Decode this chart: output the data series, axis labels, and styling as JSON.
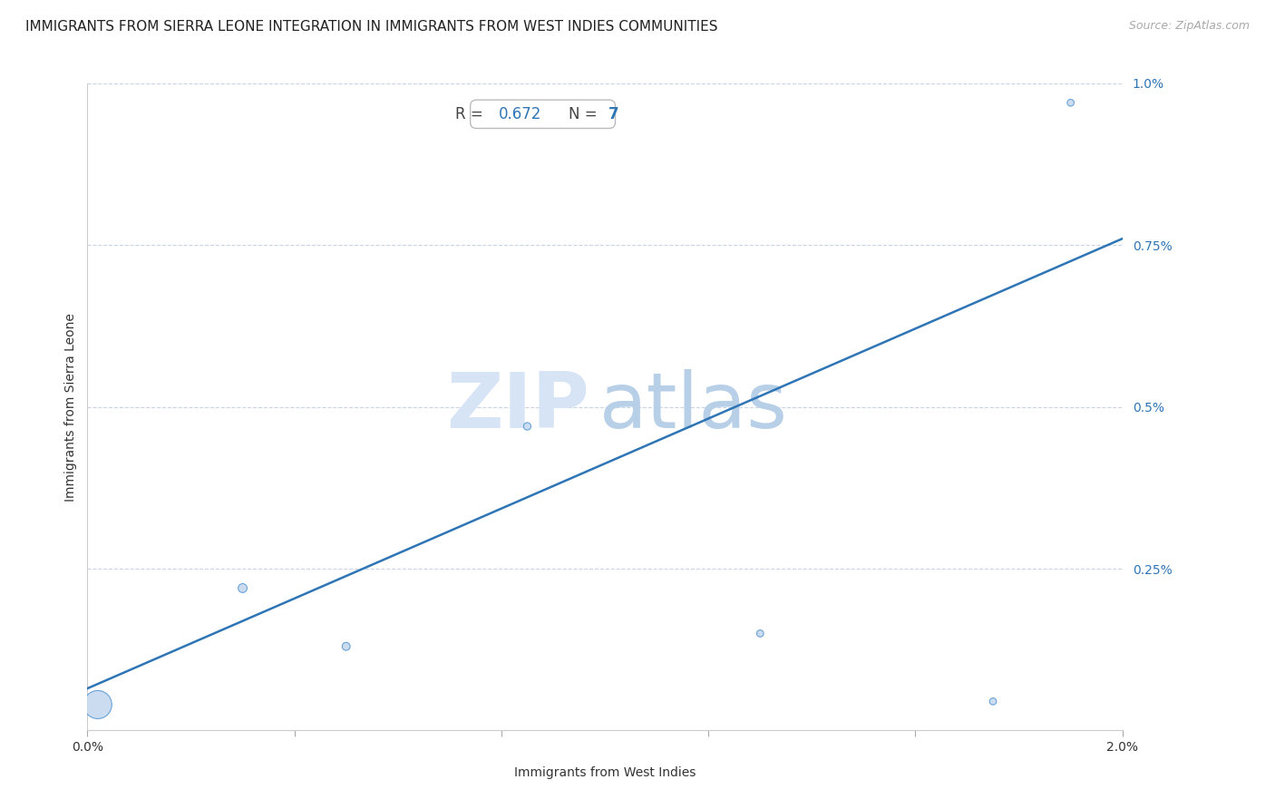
{
  "title": "IMMIGRANTS FROM SIERRA LEONE INTEGRATION IN IMMIGRANTS FROM WEST INDIES COMMUNITIES",
  "source": "Source: ZipAtlas.com",
  "xlabel": "Immigrants from West Indies",
  "ylabel": "Immigrants from Sierra Leone",
  "R": 0.672,
  "N": 7,
  "x_data": [
    0.0002,
    0.003,
    0.005,
    0.0085,
    0.013,
    0.0175,
    0.019
  ],
  "y_data": [
    0.0004,
    0.0022,
    0.0013,
    0.0047,
    0.0015,
    0.00045,
    0.0097
  ],
  "bubble_sizes": [
    500,
    50,
    40,
    35,
    30,
    30,
    30
  ],
  "xlim": [
    0.0,
    0.02
  ],
  "ylim": [
    0.0,
    0.01
  ],
  "xticks": [
    0.0,
    0.004,
    0.008,
    0.012,
    0.016,
    0.02
  ],
  "xtick_labels_show": [
    true,
    false,
    false,
    false,
    false,
    true
  ],
  "xtick_label_vals": [
    "0.0%",
    "",
    "",
    "",
    "",
    "2.0%"
  ],
  "yticks": [
    0.0,
    0.0025,
    0.005,
    0.0075,
    0.01
  ],
  "ytick_labels": [
    "",
    "0.25%",
    "0.5%",
    "0.75%",
    "1.0%"
  ],
  "scatter_face_color": "#c6d9f0",
  "scatter_edge_color": "#5b9bd5",
  "line_color": "#2e75b6",
  "grid_color": "#c8d4e8",
  "background_color": "#ffffff",
  "zip_color": "#d6e4f5",
  "atlas_color": "#b8cfe8",
  "annot_text_color": "#444444",
  "annot_val_color": "#2e75b6",
  "title_fontsize": 11,
  "label_fontsize": 10,
  "tick_fontsize": 10,
  "annot_fontsize": 12,
  "watermark_fontsize": 62,
  "right_tick_color": "#2e75b6",
  "line_start_x": 0.0,
  "line_start_y": 0.00065,
  "line_end_x": 0.02,
  "line_end_y": 0.0076
}
